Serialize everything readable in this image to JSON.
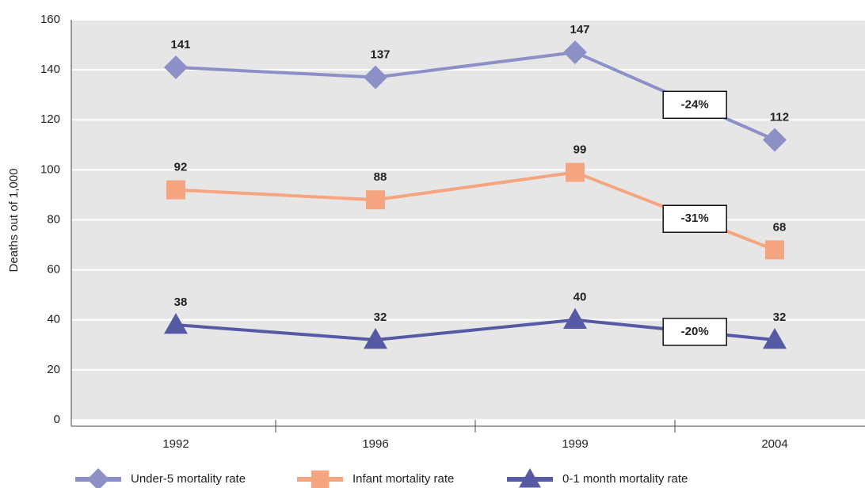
{
  "chart_data": {
    "type": "line",
    "y_label": "Deaths out of 1,000",
    "categories": [
      "1992",
      "1996",
      "1999",
      "2004"
    ],
    "series": [
      {
        "name": "Under-5 mortality rate",
        "color": "#8d90c6",
        "marker": "diamond",
        "values": [
          141,
          137,
          147,
          112
        ]
      },
      {
        "name": "Infant mortality rate",
        "color": "#f5a57f",
        "marker": "square",
        "values": [
          92,
          88,
          99,
          68
        ]
      },
      {
        "name": "0-1 month mortality rate",
        "color": "#5659a3",
        "marker": "triangle",
        "values": [
          38,
          32,
          40,
          32
        ]
      }
    ],
    "annotations": [
      "-24%",
      "-31%",
      "-20%"
    ],
    "ylim": [
      0,
      160
    ],
    "yticks": [
      0,
      20,
      40,
      60,
      80,
      100,
      120,
      140,
      160
    ],
    "grid": true
  }
}
